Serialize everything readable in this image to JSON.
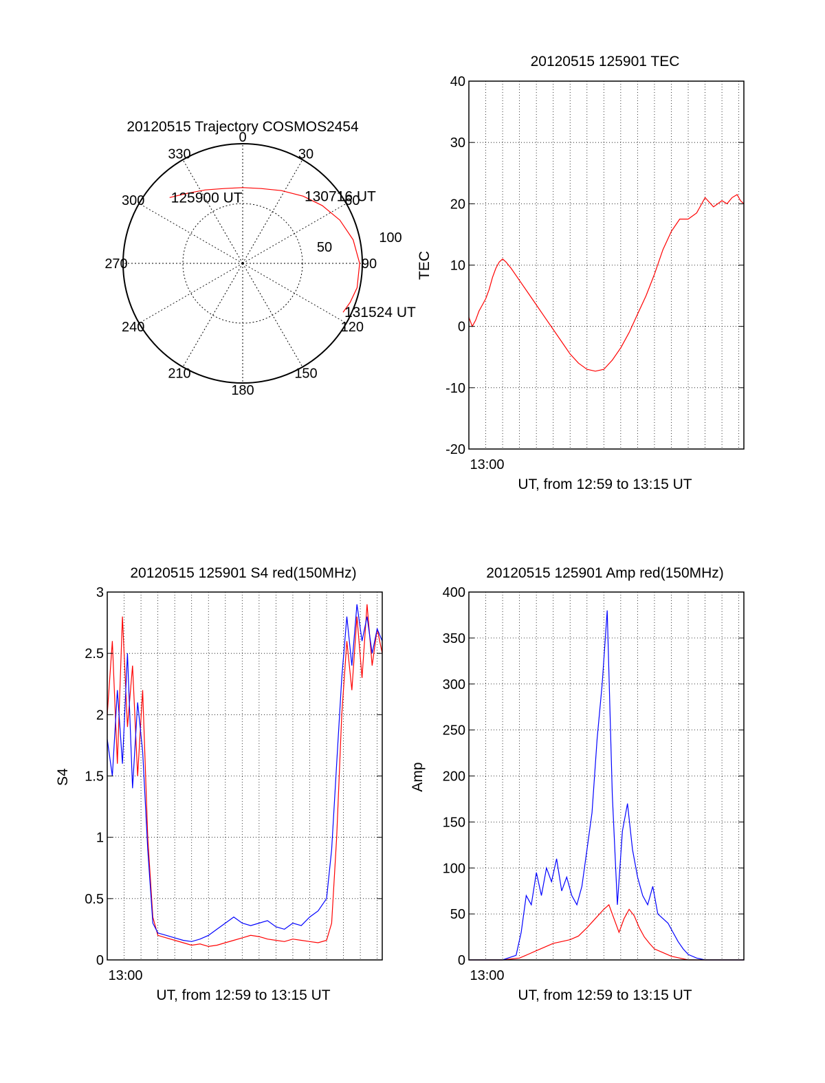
{
  "colors": {
    "red": "#ff0000",
    "blue": "#0000ff",
    "axis": "#000000",
    "grid": "#000000"
  },
  "chart_data": [
    {
      "id": "polar",
      "type": "polar",
      "title": "20120515 Trajectory COSMOS2454",
      "azimuth_labels": [
        "0",
        "30",
        "60",
        "90",
        "120",
        "150",
        "180",
        "210",
        "240",
        "270",
        "300",
        "330"
      ],
      "ring_labels": [
        "50",
        "100"
      ],
      "grid": true,
      "track": [
        {
          "az": 312,
          "zen": 74
        },
        {
          "az": 322,
          "zen": 67
        },
        {
          "az": 333,
          "zen": 62
        },
        {
          "az": 346,
          "zen": 58
        },
        {
          "az": 0,
          "zen": 57
        },
        {
          "az": 14,
          "zen": 58
        },
        {
          "az": 28,
          "zen": 62
        },
        {
          "az": 42,
          "zen": 68
        },
        {
          "az": 54,
          "zen": 74
        },
        {
          "az": 66,
          "zen": 80
        },
        {
          "az": 78,
          "zen": 85
        },
        {
          "az": 90,
          "zen": 88
        },
        {
          "az": 102,
          "zen": 88
        },
        {
          "az": 110,
          "zen": 86
        },
        {
          "az": 116,
          "zen": 84
        }
      ],
      "annotations": [
        {
          "text": "125900 UT",
          "az": 312,
          "zen": 74
        },
        {
          "text": "130716 UT",
          "az": 42,
          "zen": 68
        },
        {
          "text": "131524 UT",
          "az": 116,
          "zen": 84
        }
      ]
    },
    {
      "id": "tec",
      "type": "line",
      "title": "20120515 125901 TEC",
      "xlabel": "UT, from 12:59 to 13:15 UT",
      "ylabel": "TEC",
      "x_unit": "minutes after 12:59 UT",
      "xlim": [
        0,
        16.3
      ],
      "ylim": [
        -20,
        40
      ],
      "y_ticks": [
        -20,
        -10,
        0,
        10,
        20,
        30,
        40
      ],
      "x_tick_labels": [
        {
          "x": 1,
          "label": "13:00"
        }
      ],
      "grid": true,
      "series": [
        {
          "color": "red",
          "x": [
            0,
            0.2,
            0.4,
            0.6,
            0.8,
            1.0,
            1.2,
            1.4,
            1.6,
            1.8,
            2.0,
            2.2,
            2.5,
            3,
            3.5,
            4,
            4.5,
            5,
            5.5,
            6,
            6.5,
            7,
            7.5,
            8,
            8.5,
            9,
            9.5,
            10,
            10.5,
            11,
            11.5,
            12,
            12.5,
            13,
            13.5,
            14,
            14.5,
            15,
            15.3,
            15.6,
            15.9,
            16.1,
            16.3
          ],
          "y": [
            1.5,
            0,
            1.0,
            2.5,
            3.5,
            4.5,
            6,
            8,
            9.5,
            10.5,
            11,
            10.5,
            9.5,
            7.5,
            5.5,
            3.5,
            1.5,
            -0.5,
            -2.5,
            -4.5,
            -6,
            -7,
            -7.3,
            -7,
            -5.5,
            -3.5,
            -1,
            2,
            5,
            8.5,
            12.5,
            15.5,
            17.5,
            17.5,
            18.5,
            21,
            19.5,
            20.5,
            20,
            21,
            21.5,
            20.5,
            20
          ]
        }
      ]
    },
    {
      "id": "s4",
      "type": "line",
      "title": "20120515 125901 S4 red(150MHz)",
      "xlabel": "UT, from 12:59 to 13:15 UT",
      "ylabel": "S4",
      "x_unit": "minutes after 12:59 UT",
      "xlim": [
        0,
        16.3
      ],
      "ylim": [
        0,
        3
      ],
      "y_ticks": [
        "0",
        "0.5",
        "1",
        "1.5",
        "2",
        "2.5",
        "3"
      ],
      "x_tick_labels": [
        {
          "x": 1,
          "label": "13:00"
        }
      ],
      "grid": true,
      "series": [
        {
          "color": "red",
          "x": [
            0,
            0.3,
            0.6,
            0.9,
            1.2,
            1.5,
            1.8,
            2.1,
            2.4,
            2.7,
            3,
            3.5,
            4,
            4.5,
            5,
            5.5,
            6,
            6.5,
            7,
            7.5,
            8,
            8.5,
            9,
            9.5,
            10,
            10.5,
            11,
            11.5,
            12,
            12.5,
            13,
            13.3,
            13.6,
            13.9,
            14.2,
            14.5,
            14.8,
            15.1,
            15.4,
            15.7,
            16,
            16.3
          ],
          "y": [
            2.0,
            2.6,
            1.6,
            2.8,
            1.9,
            2.4,
            1.5,
            2.2,
            1.0,
            0.35,
            0.2,
            0.18,
            0.16,
            0.14,
            0.12,
            0.13,
            0.11,
            0.12,
            0.14,
            0.16,
            0.18,
            0.2,
            0.19,
            0.17,
            0.16,
            0.15,
            0.17,
            0.16,
            0.15,
            0.14,
            0.16,
            0.3,
            1.0,
            2.0,
            2.6,
            2.2,
            2.8,
            2.3,
            2.9,
            2.4,
            2.7,
            2.5
          ]
        },
        {
          "color": "blue",
          "x": [
            0,
            0.3,
            0.6,
            0.9,
            1.2,
            1.5,
            1.8,
            2.1,
            2.4,
            2.7,
            3,
            3.5,
            4,
            4.5,
            5,
            5.5,
            6,
            6.5,
            7,
            7.5,
            8,
            8.5,
            9,
            9.5,
            10,
            10.5,
            11,
            11.5,
            12,
            12.5,
            13,
            13.3,
            13.6,
            13.9,
            14.2,
            14.5,
            14.8,
            15.1,
            15.4,
            15.7,
            16,
            16.3
          ],
          "y": [
            1.8,
            1.5,
            2.2,
            1.6,
            2.5,
            1.4,
            2.1,
            1.7,
            0.9,
            0.3,
            0.22,
            0.2,
            0.18,
            0.16,
            0.15,
            0.17,
            0.2,
            0.25,
            0.3,
            0.35,
            0.3,
            0.28,
            0.3,
            0.32,
            0.27,
            0.25,
            0.3,
            0.28,
            0.35,
            0.4,
            0.5,
            0.9,
            1.6,
            2.3,
            2.8,
            2.4,
            2.9,
            2.6,
            2.8,
            2.5,
            2.7,
            2.6
          ]
        }
      ]
    },
    {
      "id": "amp",
      "type": "line",
      "title": "20120515 125901 Amp red(150MHz)",
      "xlabel": "UT, from 12:59 to 13:15 UT",
      "ylabel": "Amp",
      "x_unit": "minutes after 12:59 UT",
      "xlim": [
        0,
        16.3
      ],
      "ylim": [
        0,
        400
      ],
      "y_ticks": [
        0,
        50,
        100,
        150,
        200,
        250,
        300,
        350,
        400
      ],
      "x_tick_labels": [
        {
          "x": 1,
          "label": "13:00"
        }
      ],
      "grid": true,
      "series": [
        {
          "color": "red",
          "x": [
            0,
            2,
            3,
            3.5,
            4,
            4.5,
            5,
            5.5,
            6,
            6.5,
            7,
            7.5,
            8,
            8.3,
            8.6,
            8.9,
            9.2,
            9.5,
            9.8,
            10.1,
            10.4,
            10.7,
            11,
            11.5,
            12,
            12.5,
            13,
            14,
            16.3
          ],
          "y": [
            0,
            0,
            2,
            6,
            10,
            14,
            18,
            20,
            22,
            26,
            35,
            45,
            55,
            60,
            45,
            30,
            45,
            55,
            48,
            35,
            25,
            18,
            12,
            8,
            4,
            2,
            0,
            0,
            0
          ]
        },
        {
          "color": "blue",
          "x": [
            0,
            2,
            2.8,
            3.1,
            3.4,
            3.7,
            4,
            4.3,
            4.6,
            4.9,
            5.2,
            5.5,
            5.8,
            6.1,
            6.4,
            6.7,
            7,
            7.3,
            7.6,
            7.9,
            8.2,
            8.5,
            8.8,
            9.1,
            9.4,
            9.7,
            10,
            10.3,
            10.6,
            10.9,
            11.2,
            11.5,
            11.8,
            12.1,
            12.4,
            12.7,
            13,
            13.5,
            14,
            16.3
          ],
          "y": [
            0,
            0,
            5,
            30,
            70,
            60,
            95,
            70,
            100,
            85,
            110,
            75,
            90,
            70,
            60,
            80,
            120,
            160,
            240,
            300,
            380,
            180,
            60,
            140,
            170,
            120,
            90,
            70,
            60,
            80,
            50,
            45,
            40,
            30,
            20,
            12,
            6,
            2,
            0,
            0
          ]
        }
      ]
    }
  ]
}
